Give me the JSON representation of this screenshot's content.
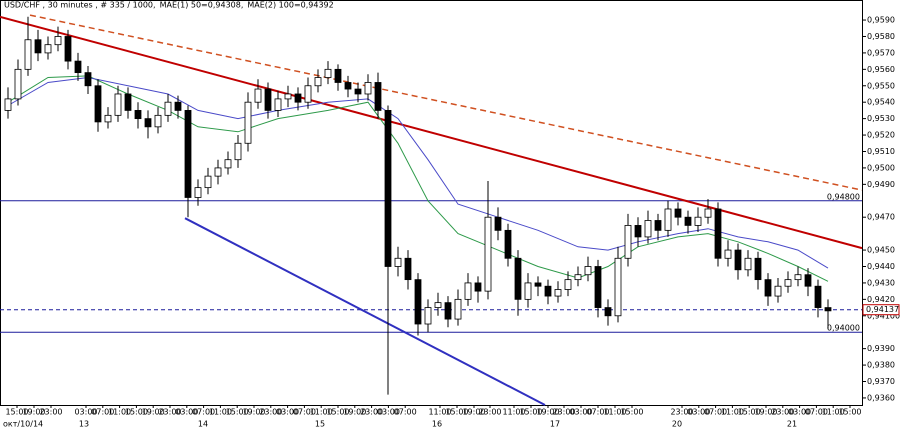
{
  "chart_data": {
    "type": "candlestick",
    "title": "USD/CHF , 30 minutes , # 335 / 1000,",
    "ylim": [
      0.93557,
      0.96022
    ],
    "xlim": [
      -0.8,
      85.4
    ],
    "yticks": [
      {
        "value": 0.959,
        "label": "0,9590"
      },
      {
        "value": 0.958,
        "label": "0,9580"
      },
      {
        "value": 0.957,
        "label": "0,9570"
      },
      {
        "value": 0.956,
        "label": "0,9560"
      },
      {
        "value": 0.955,
        "label": "0,9550"
      },
      {
        "value": 0.954,
        "label": "0,9540"
      },
      {
        "value": 0.953,
        "label": "0,9530"
      },
      {
        "value": 0.952,
        "label": "0,9520"
      },
      {
        "value": 0.951,
        "label": "0,9510"
      },
      {
        "value": 0.95,
        "label": "0,9500"
      },
      {
        "value": 0.949,
        "label": "0,9490"
      },
      {
        "value": 0.947,
        "label": "0,9470"
      },
      {
        "value": 0.945,
        "label": "0,9450"
      },
      {
        "value": 0.944,
        "label": "0,9440"
      },
      {
        "value": 0.943,
        "label": "0,9430"
      },
      {
        "value": 0.942,
        "label": "0,9420"
      },
      {
        "value": 0.941,
        "label": "0,94100"
      },
      {
        "value": 0.939,
        "label": "0,9390"
      },
      {
        "value": 0.938,
        "label": "0,9380"
      },
      {
        "value": 0.937,
        "label": "0,9370"
      },
      {
        "value": 0.936,
        "label": "0,9360"
      }
    ],
    "xticks": [
      {
        "value": 0.9,
        "label": "15:00"
      },
      {
        "value": 2.6,
        "label": "19:00"
      },
      {
        "value": 4.3,
        "label": "23:00"
      },
      {
        "value": 7.8,
        "label": "03:00"
      },
      {
        "value": 9.48,
        "label": "07:00"
      },
      {
        "value": 11.16,
        "label": "11:00"
      },
      {
        "value": 12.84,
        "label": "15:00"
      },
      {
        "value": 14.52,
        "label": "19:00"
      },
      {
        "value": 16.2,
        "label": "23:00"
      },
      {
        "value": 17.88,
        "label": "03:00"
      },
      {
        "value": 19.56,
        "label": "07:00"
      },
      {
        "value": 21.24,
        "label": "11:00"
      },
      {
        "value": 22.92,
        "label": "15:00"
      },
      {
        "value": 24.6,
        "label": "19:00"
      },
      {
        "value": 26.28,
        "label": "23:00"
      },
      {
        "value": 27.96,
        "label": "03:00"
      },
      {
        "value": 29.64,
        "label": "07:00"
      },
      {
        "value": 31.32,
        "label": "11:00"
      },
      {
        "value": 33.0,
        "label": "15:00"
      },
      {
        "value": 34.68,
        "label": "19:00"
      },
      {
        "value": 36.36,
        "label": "23:00"
      },
      {
        "value": 38.04,
        "label": "03:00"
      },
      {
        "value": 39.72,
        "label": "07:00"
      },
      {
        "value": 43.2,
        "label": "11:00"
      },
      {
        "value": 44.9,
        "label": "15:00"
      },
      {
        "value": 46.6,
        "label": "19:00"
      },
      {
        "value": 48.2,
        "label": "23:00"
      },
      {
        "value": 50.6,
        "label": "11:00"
      },
      {
        "value": 52.3,
        "label": "15:00"
      },
      {
        "value": 54.0,
        "label": "19:00"
      },
      {
        "value": 55.6,
        "label": "23:00"
      },
      {
        "value": 57.3,
        "label": "03:00"
      },
      {
        "value": 59.0,
        "label": "07:00"
      },
      {
        "value": 60.7,
        "label": "11:00"
      },
      {
        "value": 62.4,
        "label": "15:00"
      },
      {
        "value": 67.4,
        "label": "23:00"
      },
      {
        "value": 69.08,
        "label": "03:00"
      },
      {
        "value": 70.76,
        "label": "07:00"
      },
      {
        "value": 72.44,
        "label": "11:00"
      },
      {
        "value": 74.12,
        "label": "15:00"
      },
      {
        "value": 75.8,
        "label": "19:00"
      },
      {
        "value": 77.48,
        "label": "23:00"
      },
      {
        "value": 79.16,
        "label": "03:00"
      },
      {
        "value": 80.84,
        "label": "07:00"
      },
      {
        "value": 82.52,
        "label": "11:00"
      },
      {
        "value": 84.2,
        "label": "15:00"
      }
    ],
    "date_ticks": [
      {
        "value": -0.5,
        "label": "окт/10/14"
      },
      {
        "value": 7.6,
        "label": "13"
      },
      {
        "value": 19.5,
        "label": "14"
      },
      {
        "value": 31.2,
        "label": "15"
      },
      {
        "value": 42.9,
        "label": "16"
      },
      {
        "value": 54.7,
        "label": "17"
      },
      {
        "value": 66.9,
        "label": "20"
      },
      {
        "value": 78.4,
        "label": "21"
      }
    ],
    "candles": [
      [
        0.9535,
        0.9549,
        0.953,
        0.9542
      ],
      [
        0.9542,
        0.9566,
        0.9538,
        0.956
      ],
      [
        0.956,
        0.9592,
        0.9556,
        0.9578
      ],
      [
        0.9578,
        0.9584,
        0.9565,
        0.957
      ],
      [
        0.957,
        0.958,
        0.9566,
        0.9575
      ],
      [
        0.9575,
        0.9586,
        0.9571,
        0.958
      ],
      [
        0.958,
        0.9584,
        0.956,
        0.9565
      ],
      [
        0.9565,
        0.957,
        0.9553,
        0.9558
      ],
      [
        0.9558,
        0.9562,
        0.9545,
        0.955
      ],
      [
        0.955,
        0.9554,
        0.9522,
        0.9528
      ],
      [
        0.9528,
        0.9537,
        0.9524,
        0.9532
      ],
      [
        0.9532,
        0.955,
        0.9528,
        0.9545
      ],
      [
        0.9545,
        0.9549,
        0.953,
        0.9535
      ],
      [
        0.9535,
        0.954,
        0.9524,
        0.953
      ],
      [
        0.953,
        0.9535,
        0.9518,
        0.9525
      ],
      [
        0.9525,
        0.9537,
        0.9521,
        0.9532
      ],
      [
        0.9532,
        0.9545,
        0.9528,
        0.954
      ],
      [
        0.954,
        0.9544,
        0.953,
        0.9535
      ],
      [
        0.9535,
        0.9538,
        0.947,
        0.9482
      ],
      [
        0.9482,
        0.9493,
        0.9477,
        0.9488
      ],
      [
        0.9488,
        0.95,
        0.9484,
        0.9495
      ],
      [
        0.9495,
        0.9505,
        0.949,
        0.95
      ],
      [
        0.95,
        0.951,
        0.9496,
        0.9505
      ],
      [
        0.9505,
        0.952,
        0.95,
        0.9515
      ],
      [
        0.9515,
        0.9546,
        0.951,
        0.954
      ],
      [
        0.954,
        0.9554,
        0.9536,
        0.9548
      ],
      [
        0.9548,
        0.9552,
        0.953,
        0.9535
      ],
      [
        0.9535,
        0.9547,
        0.9531,
        0.9542
      ],
      [
        0.9542,
        0.955,
        0.9537,
        0.9545
      ],
      [
        0.9545,
        0.9549,
        0.9535,
        0.954
      ],
      [
        0.954,
        0.9555,
        0.9536,
        0.955
      ],
      [
        0.955,
        0.956,
        0.9546,
        0.9555
      ],
      [
        0.9555,
        0.9565,
        0.9551,
        0.956
      ],
      [
        0.956,
        0.9563,
        0.9547,
        0.9552
      ],
      [
        0.9552,
        0.9556,
        0.9543,
        0.9548
      ],
      [
        0.9548,
        0.9552,
        0.954,
        0.9545
      ],
      [
        0.9545,
        0.9557,
        0.9541,
        0.9552
      ],
      [
        0.9552,
        0.9558,
        0.953,
        0.9535
      ],
      [
        0.9535,
        0.9538,
        0.9362,
        0.944
      ],
      [
        0.944,
        0.9452,
        0.9434,
        0.9445
      ],
      [
        0.9445,
        0.945,
        0.9426,
        0.9432
      ],
      [
        0.9432,
        0.9436,
        0.9398,
        0.9405
      ],
      [
        0.9405,
        0.942,
        0.94,
        0.9415
      ],
      [
        0.9415,
        0.9424,
        0.941,
        0.9418
      ],
      [
        0.9418,
        0.9422,
        0.9403,
        0.9408
      ],
      [
        0.9408,
        0.9426,
        0.9404,
        0.942
      ],
      [
        0.942,
        0.9436,
        0.9416,
        0.943
      ],
      [
        0.943,
        0.9434,
        0.9418,
        0.9425
      ],
      [
        0.9425,
        0.9492,
        0.942,
        0.947
      ],
      [
        0.947,
        0.9476,
        0.9456,
        0.9462
      ],
      [
        0.9462,
        0.9466,
        0.944,
        0.9445
      ],
      [
        0.9445,
        0.945,
        0.941,
        0.942
      ],
      [
        0.942,
        0.9436,
        0.9415,
        0.943
      ],
      [
        0.943,
        0.9434,
        0.9422,
        0.9428
      ],
      [
        0.9428,
        0.9432,
        0.9417,
        0.9422
      ],
      [
        0.9422,
        0.9431,
        0.9418,
        0.9426
      ],
      [
        0.9426,
        0.9437,
        0.9422,
        0.9432
      ],
      [
        0.9432,
        0.944,
        0.9428,
        0.9435
      ],
      [
        0.9435,
        0.9446,
        0.9431,
        0.944
      ],
      [
        0.944,
        0.9444,
        0.9409,
        0.9415
      ],
      [
        0.9415,
        0.942,
        0.9404,
        0.941
      ],
      [
        0.941,
        0.9452,
        0.9406,
        0.9445
      ],
      [
        0.9445,
        0.9472,
        0.944,
        0.9465
      ],
      [
        0.9465,
        0.947,
        0.9452,
        0.9458
      ],
      [
        0.9458,
        0.9474,
        0.9454,
        0.9468
      ],
      [
        0.9468,
        0.9472,
        0.9456,
        0.9462
      ],
      [
        0.9462,
        0.948,
        0.9458,
        0.9475
      ],
      [
        0.9475,
        0.9479,
        0.9465,
        0.947
      ],
      [
        0.947,
        0.9474,
        0.946,
        0.9465
      ],
      [
        0.9465,
        0.9476,
        0.9461,
        0.947
      ],
      [
        0.947,
        0.9481,
        0.9466,
        0.9475
      ],
      [
        0.9475,
        0.9479,
        0.944,
        0.9445
      ],
      [
        0.9445,
        0.9456,
        0.944,
        0.945
      ],
      [
        0.945,
        0.9454,
        0.9432,
        0.9438
      ],
      [
        0.9438,
        0.945,
        0.9434,
        0.9445
      ],
      [
        0.9445,
        0.9449,
        0.9426,
        0.9432
      ],
      [
        0.9432,
        0.9436,
        0.9416,
        0.9422
      ],
      [
        0.9422,
        0.9433,
        0.9418,
        0.9428
      ],
      [
        0.9428,
        0.9437,
        0.9424,
        0.9432
      ],
      [
        0.9432,
        0.944,
        0.9428,
        0.9435
      ],
      [
        0.9435,
        0.9439,
        0.9422,
        0.9428
      ],
      [
        0.9428,
        0.9432,
        0.9409,
        0.9415
      ],
      [
        0.9415,
        0.942,
        0.9402,
        0.9413
      ]
    ],
    "up_color": "#ffffff",
    "down_color": "#000000",
    "series": [
      {
        "name": "MAE(1) 50=0,94308,",
        "color": "#2e9a4a",
        "x": [
          0,
          4,
          8,
          12,
          16,
          19,
          23,
          27,
          32,
          36,
          39,
          42,
          45,
          49,
          53,
          57,
          60,
          63,
          67,
          70,
          73,
          76,
          79,
          82
        ],
        "values": [
          0.954,
          0.9555,
          0.9556,
          0.9545,
          0.9535,
          0.9525,
          0.9522,
          0.953,
          0.9535,
          0.954,
          0.9515,
          0.948,
          0.946,
          0.945,
          0.944,
          0.9433,
          0.944,
          0.9452,
          0.9458,
          0.946,
          0.9455,
          0.9448,
          0.944,
          0.9431
        ]
      },
      {
        "name": "MAE(2) 100=0,94392",
        "color": "#4a4ac8",
        "x": [
          0,
          4,
          8,
          12,
          16,
          19,
          23,
          27,
          32,
          36,
          39,
          42,
          45,
          49,
          53,
          57,
          60,
          63,
          67,
          70,
          73,
          76,
          79,
          82
        ],
        "values": [
          0.9538,
          0.9552,
          0.9555,
          0.955,
          0.9545,
          0.9535,
          0.953,
          0.9535,
          0.954,
          0.9542,
          0.953,
          0.9505,
          0.9478,
          0.947,
          0.9462,
          0.9452,
          0.945,
          0.9455,
          0.946,
          0.9463,
          0.9458,
          0.9455,
          0.945,
          0.9439
        ]
      }
    ],
    "trend_lines": [
      {
        "color": "#c00000",
        "dashed": false,
        "x": [
          -0.8,
          85.4
        ],
        "values": [
          0.9592,
          0.94512
        ]
      },
      {
        "color": "#d05020",
        "dashed": true,
        "x": [
          2.2,
          85.4
        ],
        "values": [
          0.9593,
          0.94865
        ]
      },
      {
        "color": "#3030c0",
        "dashed": false,
        "x": [
          17.7,
          53.7
        ],
        "values": [
          0.94694,
          0.93557
        ]
      }
    ],
    "levels": [
      {
        "value": 0.948,
        "label": "0,94800",
        "color": "#1c1c9c",
        "dashed": false,
        "boxed": false
      },
      {
        "value": 0.94137,
        "label": "0,94137",
        "color": "#1c1c9c",
        "dashed": true,
        "boxed": true
      },
      {
        "value": 0.94,
        "label": "0,94000",
        "color": "#1c1c9c",
        "dashed": false,
        "boxed": false
      }
    ]
  }
}
